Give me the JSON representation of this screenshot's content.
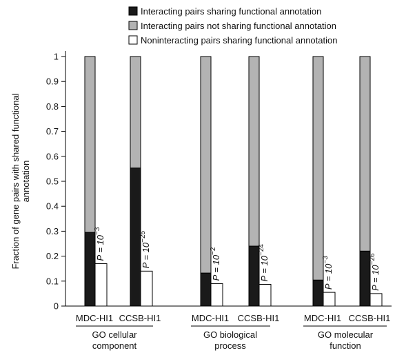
{
  "chart_data": {
    "type": "bar",
    "ylabel_lines": [
      "Fraction of gene pairs with shared functional",
      "annotation"
    ],
    "ylim": [
      0,
      1
    ],
    "yticks": [
      "0",
      "0.1",
      "0.2",
      "0.3",
      "0.4",
      "0.5",
      "0.6",
      "0.7",
      "0.8",
      "0.9",
      "1"
    ],
    "legend_position": "top",
    "legend": [
      {
        "label": "Interacting pairs sharing functional annotation",
        "color": "#1a1a1a"
      },
      {
        "label": "Interacting pairs not sharing functional annotation",
        "color": "#b3b3b3"
      },
      {
        "label": "Noninteracting pairs sharing functional annotation",
        "color": "#ffffff"
      }
    ],
    "groups": [
      {
        "label_lines": [
          "GO cellular",
          "component"
        ],
        "datasets": [
          {
            "name": "MDC-HI1",
            "interacting_sharing": 0.295,
            "interacting_total": 1.0,
            "noninteracting_sharing": 0.17,
            "p_prefix": "P = 10",
            "p_exp": "−3"
          },
          {
            "name": "CCSB-HI1",
            "interacting_sharing": 0.553,
            "interacting_total": 1.0,
            "noninteracting_sharing": 0.14,
            "p_prefix": "P = 10",
            "p_exp": "−25"
          }
        ]
      },
      {
        "label_lines": [
          "GO biological",
          "process"
        ],
        "datasets": [
          {
            "name": "MDC-HI1",
            "interacting_sharing": 0.132,
            "interacting_total": 1.0,
            "noninteracting_sharing": 0.09,
            "p_prefix": "P = 10",
            "p_exp": "−2"
          },
          {
            "name": "CCSB-HI1",
            "interacting_sharing": 0.24,
            "interacting_total": 1.0,
            "noninteracting_sharing": 0.087,
            "p_prefix": "P = 10",
            "p_exp": "−24"
          }
        ]
      },
      {
        "label_lines": [
          "GO molecular",
          "function"
        ],
        "datasets": [
          {
            "name": "MDC-HI1",
            "interacting_sharing": 0.104,
            "interacting_total": 1.0,
            "noninteracting_sharing": 0.055,
            "p_prefix": "P = 10",
            "p_exp": "−3"
          },
          {
            "name": "CCSB-HI1",
            "interacting_sharing": 0.22,
            "interacting_total": 1.0,
            "noninteracting_sharing": 0.05,
            "p_prefix": "P = 10",
            "p_exp": "−26"
          }
        ]
      }
    ]
  }
}
